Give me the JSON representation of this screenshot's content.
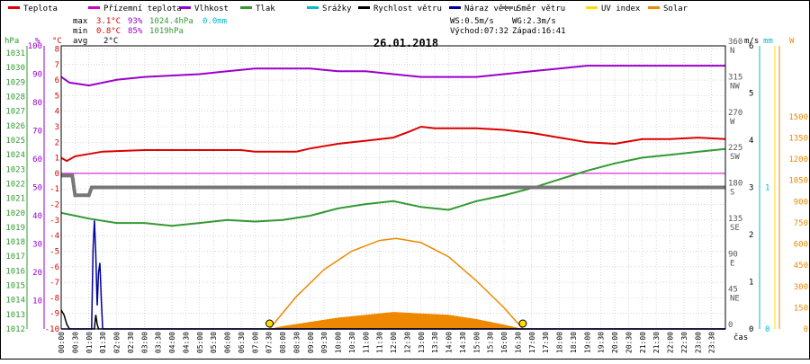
{
  "legend": [
    {
      "label": "Teplota",
      "color": "#dd0000"
    },
    {
      "label": "Přízemní teplota",
      "color": "#cc00cc"
    },
    {
      "label": "Vlhkost",
      "color": "#9900cc"
    },
    {
      "label": "Tlak",
      "color": "#339933"
    },
    {
      "label": "Srážky",
      "color": "#00bbcc"
    },
    {
      "label": "Rychlost větru",
      "color": "#000000"
    },
    {
      "label": "Náraz větru",
      "color": "#000099"
    },
    {
      "label": "Směr větru",
      "color": "#777777"
    },
    {
      "label": "UV index",
      "color": "#ffdd00"
    },
    {
      "label": "Solar",
      "color": "#ee8800"
    }
  ],
  "stats": {
    "max_label": "max",
    "max_temp": "3.1°C",
    "max_hum": "93%",
    "max_press": "1024.4hPa",
    "max_rain": "0.0mm",
    "min_label": "min",
    "min_temp": "0.8°C",
    "min_hum": "85%",
    "min_press": "1019hPa",
    "avg_label": "avg",
    "avg_temp": "2°C",
    "ws": "WS:0.5m/s",
    "wg": "WG:2.3m/s",
    "sunrise": "Východ:07:32",
    "sunset": "Západ:16:41"
  },
  "date": "26.01.2018",
  "axis_units": {
    "press": "hPa",
    "hum": "%",
    "temp": "°C",
    "wind": "m/s",
    "rain": "mm",
    "solar": "W",
    "time": "čas"
  },
  "colors": {
    "temp": "#dd0000",
    "ground": "#cc00cc",
    "hum": "#9900cc",
    "press": "#339933",
    "rain": "#00bbcc",
    "wind": "#000000",
    "gust": "#000099",
    "dir": "#777777",
    "uv": "#ffdd00",
    "solar": "#ee8800",
    "grid": "#c0c0c0",
    "plot_border": "#000000"
  },
  "chart_data": {
    "type": "line",
    "title": "26.01.2018",
    "x_labels": [
      "00:00",
      "00:30",
      "01:00",
      "01:30",
      "02:00",
      "02:30",
      "03:00",
      "03:30",
      "04:00",
      "04:30",
      "05:00",
      "05:30",
      "06:00",
      "06:30",
      "07:00",
      "07:30",
      "08:00",
      "08:30",
      "09:00",
      "09:30",
      "10:00",
      "10:30",
      "11:00",
      "11:30",
      "12:00",
      "12:30",
      "13:00",
      "13:30",
      "14:00",
      "14:30",
      "15:00",
      "15:30",
      "16:00",
      "16:30",
      "17:00",
      "17:30",
      "18:00",
      "18:30",
      "19:00",
      "19:30",
      "20:00",
      "20:30",
      "21:00",
      "21:30",
      "22:00",
      "22:30",
      "23:00",
      "23:30"
    ],
    "axes": {
      "press": {
        "ticks": [
          1012,
          1013,
          1014,
          1015,
          1016,
          1017,
          1018,
          1019,
          1020,
          1021,
          1022,
          1023,
          1024,
          1025,
          1026,
          1027,
          1028,
          1029,
          1030,
          1031
        ],
        "range": [
          1012,
          1031.5
        ]
      },
      "hum": {
        "ticks": [
          10,
          20,
          30,
          40,
          50,
          60,
          70,
          80,
          90,
          100
        ],
        "range": [
          0,
          100
        ]
      },
      "temp": {
        "ticks": [
          -10,
          -9,
          -8,
          -7,
          -6,
          -5,
          -4,
          -3,
          -2,
          -1,
          0,
          1,
          2,
          3,
          4,
          5,
          6,
          7,
          8
        ],
        "range": [
          -10,
          8.2
        ]
      },
      "dir": {
        "ticks": [
          "0",
          "45 NE",
          "90 E",
          "135 SE",
          "180 S",
          "225 SW",
          "270 W",
          "315 NW",
          "360 N"
        ],
        "range": [
          0,
          360
        ]
      },
      "wind": {
        "ticks": [
          0,
          1,
          2,
          3,
          4,
          5,
          6
        ],
        "range": [
          0,
          6
        ]
      },
      "rain": {
        "ticks": [
          0,
          1
        ],
        "range": [
          0,
          2
        ]
      },
      "solar": {
        "ticks": [
          0,
          150,
          300,
          450,
          600,
          750,
          900,
          1050,
          1200,
          1350,
          1500
        ],
        "range": [
          0,
          2000
        ]
      }
    },
    "series": [
      {
        "name": "Teplota",
        "axis": "temp",
        "points": [
          [
            0,
            1.0
          ],
          [
            0.2,
            0.8
          ],
          [
            0.5,
            1.1
          ],
          [
            1.5,
            1.4
          ],
          [
            3,
            1.5
          ],
          [
            5,
            1.5
          ],
          [
            6.5,
            1.5
          ],
          [
            7,
            1.4
          ],
          [
            8.5,
            1.4
          ],
          [
            9,
            1.6
          ],
          [
            10,
            1.9
          ],
          [
            11,
            2.1
          ],
          [
            12,
            2.3
          ],
          [
            12.6,
            2.7
          ],
          [
            13,
            3.0
          ],
          [
            13.5,
            2.9
          ],
          [
            14,
            2.9
          ],
          [
            15,
            2.9
          ],
          [
            16,
            2.8
          ],
          [
            17,
            2.6
          ],
          [
            18,
            2.3
          ],
          [
            19,
            2.0
          ],
          [
            20,
            1.9
          ],
          [
            21,
            2.2
          ],
          [
            22,
            2.2
          ],
          [
            23,
            2.3
          ],
          [
            24,
            2.2
          ]
        ]
      },
      {
        "name": "Přízemní teplota",
        "axis": "temp",
        "points": [
          [
            0,
            0.0
          ],
          [
            24,
            0.0
          ]
        ]
      },
      {
        "name": "Vlhkost",
        "axis": "hum",
        "points": [
          [
            0,
            89
          ],
          [
            0.3,
            87
          ],
          [
            1,
            86
          ],
          [
            2,
            88
          ],
          [
            3,
            89
          ],
          [
            5,
            90
          ],
          [
            6,
            91
          ],
          [
            7,
            92
          ],
          [
            7.5,
            92
          ],
          [
            9,
            92
          ],
          [
            10,
            91
          ],
          [
            11,
            91
          ],
          [
            12,
            90
          ],
          [
            13,
            89
          ],
          [
            14,
            89
          ],
          [
            15,
            89
          ],
          [
            16,
            90
          ],
          [
            17,
            91
          ],
          [
            18,
            92
          ],
          [
            19,
            93
          ],
          [
            20,
            93
          ],
          [
            22,
            93
          ],
          [
            24,
            93
          ]
        ]
      },
      {
        "name": "Tlak",
        "axis": "press",
        "points": [
          [
            0,
            1020.0
          ],
          [
            0.5,
            1019.8
          ],
          [
            1,
            1019.6
          ],
          [
            2,
            1019.3
          ],
          [
            3,
            1019.3
          ],
          [
            4,
            1019.1
          ],
          [
            5,
            1019.3
          ],
          [
            6,
            1019.5
          ],
          [
            7,
            1019.4
          ],
          [
            8,
            1019.5
          ],
          [
            9,
            1019.8
          ],
          [
            10,
            1020.3
          ],
          [
            11,
            1020.6
          ],
          [
            12,
            1020.8
          ],
          [
            13,
            1020.4
          ],
          [
            14,
            1020.2
          ],
          [
            15,
            1020.8
          ],
          [
            16,
            1021.2
          ],
          [
            17,
            1021.7
          ],
          [
            18,
            1022.3
          ],
          [
            19,
            1022.9
          ],
          [
            20,
            1023.4
          ],
          [
            21,
            1023.8
          ],
          [
            22,
            1024.0
          ],
          [
            23,
            1024.2
          ],
          [
            24,
            1024.4
          ]
        ]
      },
      {
        "name": "Směr větru",
        "axis": "dir",
        "points": [
          [
            0,
            195
          ],
          [
            0.4,
            195
          ],
          [
            0.5,
            170
          ],
          [
            1,
            170
          ],
          [
            1.1,
            180
          ],
          [
            2,
            180
          ],
          [
            24,
            180
          ]
        ]
      },
      {
        "name": "Rychlost větru",
        "axis": "wind",
        "points": [
          [
            0,
            0.4
          ],
          [
            0.1,
            0.3
          ],
          [
            0.2,
            0.1
          ],
          [
            0.3,
            0
          ],
          [
            1.2,
            0
          ],
          [
            1.25,
            0.3
          ],
          [
            1.3,
            0.1
          ],
          [
            1.35,
            0
          ],
          [
            24,
            0
          ]
        ]
      },
      {
        "name": "Náraz větru",
        "axis": "wind",
        "points": [
          [
            0,
            0
          ],
          [
            1.1,
            0
          ],
          [
            1.15,
            1.7
          ],
          [
            1.2,
            2.3
          ],
          [
            1.25,
            1.6
          ],
          [
            1.3,
            0.5
          ],
          [
            1.35,
            1.2
          ],
          [
            1.4,
            1.4
          ],
          [
            1.45,
            0.6
          ],
          [
            1.5,
            0
          ],
          [
            24,
            0
          ]
        ]
      },
      {
        "name": "Solar",
        "axis": "solar",
        "points": [
          [
            7.5,
            0
          ],
          [
            8,
            20
          ],
          [
            9,
            50
          ],
          [
            10,
            80
          ],
          [
            11,
            100
          ],
          [
            12,
            120
          ],
          [
            13,
            110
          ],
          [
            14,
            100
          ],
          [
            15,
            70
          ],
          [
            16,
            30
          ],
          [
            16.7,
            0
          ]
        ]
      },
      {
        "name": "Solar max",
        "axis": "solar",
        "points": [
          [
            7.53,
            0
          ],
          [
            8.5,
            230
          ],
          [
            9.5,
            420
          ],
          [
            10.5,
            550
          ],
          [
            11.5,
            625
          ],
          [
            12.1,
            640
          ],
          [
            13,
            610
          ],
          [
            14,
            510
          ],
          [
            15,
            340
          ],
          [
            16,
            150
          ],
          [
            16.68,
            0
          ]
        ]
      }
    ],
    "markers": [
      {
        "label": "sunrise",
        "x": 7.53
      },
      {
        "label": "sunset",
        "x": 16.68
      }
    ],
    "grid": true
  }
}
